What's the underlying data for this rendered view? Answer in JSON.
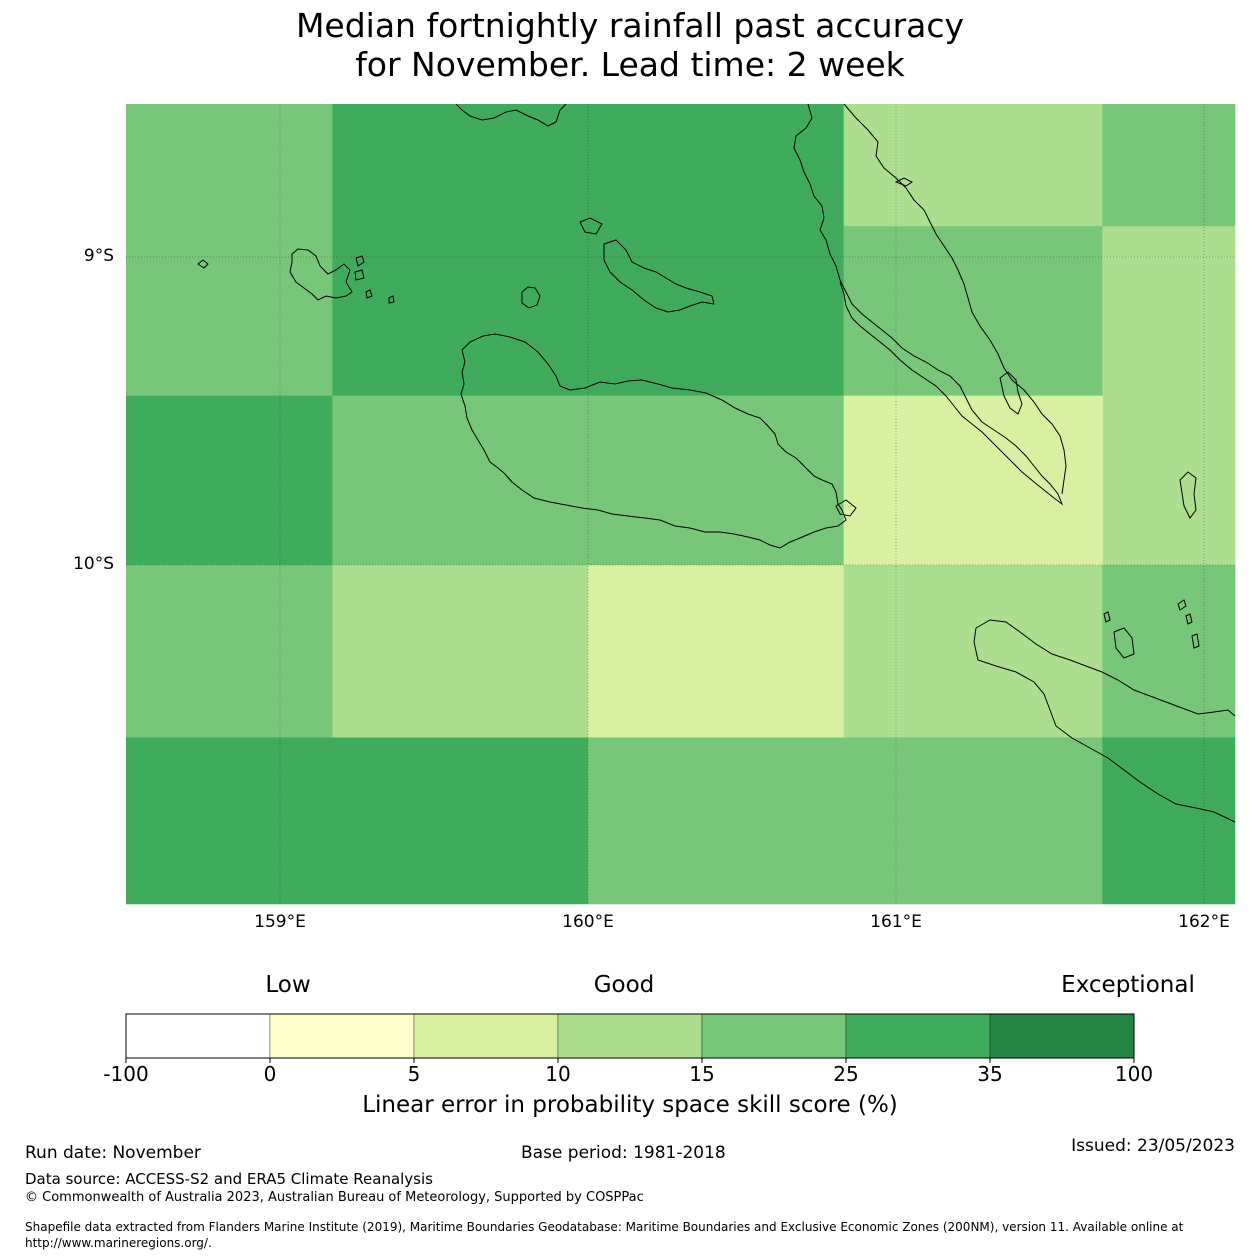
{
  "title_line1": "Median fortnightly rainfall past accuracy",
  "title_line2": "for November. Lead time: 2 week",
  "colors": {
    "band_0_5": "#ffffcc",
    "band_5_10": "#d9f0a3",
    "band_10_15": "#addd8e",
    "band_15_25": "#78c679",
    "band_25_35": "#41ab5d",
    "band_35_100": "#238443",
    "coast": "#000000"
  },
  "map": {
    "lat_labels": [
      "9°S",
      "10°S"
    ],
    "lon_labels": [
      "159°E",
      "160°E",
      "161°E",
      "162°E"
    ],
    "grid_cells": [
      {
        "row": 0,
        "col": 0,
        "band": "band_15_25",
        "lon_range": [
          158.5,
          159.17
        ],
        "lat_range": [
          -8.5,
          -9.45
        ]
      },
      {
        "row": 0,
        "col": 1,
        "band": "band_25_35",
        "lon_range": [
          159.17,
          160.83
        ],
        "lat_range": [
          -8.5,
          -9.45
        ]
      },
      {
        "row": 0,
        "col": 2,
        "band": "band_10_15",
        "lon_range": [
          160.83,
          161.67
        ],
        "lat_range": [
          -8.5,
          -8.9
        ]
      },
      {
        "row": 0,
        "col": 3,
        "band": "band_15_25",
        "lon_range": [
          161.67,
          162.1
        ],
        "lat_range": [
          -8.5,
          -8.9
        ]
      },
      {
        "row": 1,
        "col": 2,
        "band": "band_15_25",
        "lon_range": [
          160.83,
          161.67
        ],
        "lat_range": [
          -8.9,
          -9.45
        ]
      },
      {
        "row": 1,
        "col": 3,
        "band": "band_10_15",
        "lon_range": [
          161.67,
          162.1
        ],
        "lat_range": [
          -8.9,
          -10.0
        ]
      },
      {
        "row": 2,
        "col": 0,
        "band": "band_25_35",
        "lon_range": [
          158.5,
          159.17
        ],
        "lat_range": [
          -9.45,
          -10.0
        ]
      },
      {
        "row": 2,
        "col": 1,
        "band": "band_15_25",
        "lon_range": [
          159.17,
          160.83
        ],
        "lat_range": [
          -9.45,
          -10.0
        ]
      },
      {
        "row": 2,
        "col": 2,
        "band": "band_5_10",
        "lon_range": [
          160.83,
          161.67
        ],
        "lat_range": [
          -9.45,
          -10.0
        ]
      },
      {
        "row": 3,
        "col": 0,
        "band": "band_15_25",
        "lon_range": [
          158.5,
          159.17
        ],
        "lat_range": [
          -10.0,
          -10.56
        ]
      },
      {
        "row": 3,
        "col": 1,
        "band": "band_10_15",
        "lon_range": [
          159.17,
          160.0
        ],
        "lat_range": [
          -10.0,
          -10.56
        ]
      },
      {
        "row": 3,
        "col": 2,
        "band": "band_5_10",
        "lon_range": [
          160.0,
          160.83
        ],
        "lat_range": [
          -10.0,
          -10.56
        ]
      },
      {
        "row": 3,
        "col": 3,
        "band": "band_10_15",
        "lon_range": [
          160.83,
          161.67
        ],
        "lat_range": [
          -10.0,
          -10.56
        ]
      },
      {
        "row": 3,
        "col": 4,
        "band": "band_15_25",
        "lon_range": [
          161.67,
          162.1
        ],
        "lat_range": [
          -10.0,
          -10.56
        ]
      },
      {
        "row": 4,
        "col": 0,
        "band": "band_25_35",
        "lon_range": [
          158.5,
          160.0
        ],
        "lat_range": [
          -10.56,
          -11.1
        ]
      },
      {
        "row": 4,
        "col": 1,
        "band": "band_15_25",
        "lon_range": [
          160.0,
          161.67
        ],
        "lat_range": [
          -10.56,
          -11.1
        ]
      },
      {
        "row": 4,
        "col": 2,
        "band": "band_25_35",
        "lon_range": [
          161.67,
          162.1
        ],
        "lat_range": [
          -10.56,
          -11.1
        ]
      }
    ]
  },
  "legend": {
    "category_labels": [
      "Low",
      "Good",
      "Exceptional"
    ],
    "ticks": [
      "-100",
      "0",
      "5",
      "10",
      "15",
      "25",
      "35",
      "100"
    ],
    "bands": [
      "#ffffff",
      "#ffffcc",
      "#d9f0a3",
      "#addd8e",
      "#78c679",
      "#41ab5d",
      "#238443"
    ],
    "title": "Linear error in probability space skill score (%)"
  },
  "footer": {
    "run_date": "Run date: November",
    "base_period": "Base period: 1981-2018",
    "issued": "Issued: 23/05/2023",
    "data_source": "Data source: ACCESS-S2 and ERA5 Climate Reanalysis",
    "copyright": "© Commonwealth of Australia 2023, Australian Bureau of Meteorology, Supported by COSPPac",
    "shapefile_line1": "Shapefile data extracted from Flanders Marine Institute (2019), Maritime Boundaries Geodatabase: Maritime Boundaries and Exclusive Economic Zones (200NM), version 11. Available online at",
    "shapefile_line2": "http://www.marineregions.org/."
  }
}
